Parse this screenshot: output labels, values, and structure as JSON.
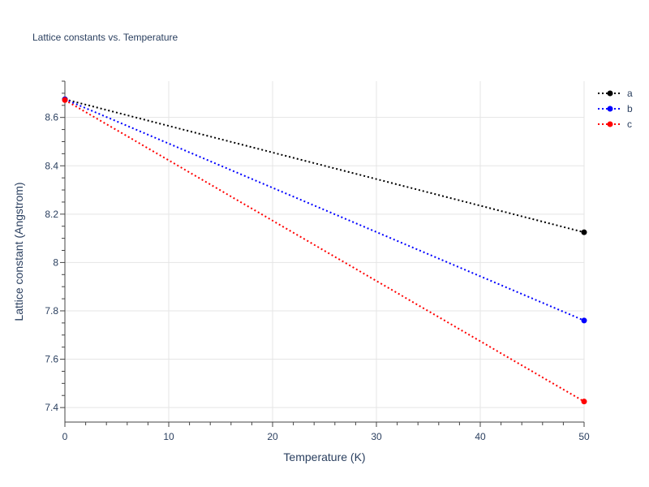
{
  "chart_data": {
    "type": "line",
    "title": "Lattice constants vs. Temperature",
    "xlabel": "Temperature (K)",
    "ylabel": "Lattice constant (Angstrom)",
    "xlim": [
      0,
      50
    ],
    "ylim": [
      7.34,
      8.75
    ],
    "xticks": [
      0,
      10,
      20,
      30,
      40,
      50
    ],
    "xtick_labels": [
      "0",
      "10",
      "20",
      "30",
      "40",
      "50"
    ],
    "yticks": [
      7.4,
      7.6,
      7.8,
      8.0,
      8.2,
      8.4,
      8.6
    ],
    "ytick_labels": [
      "7.4",
      "7.6",
      "7.8",
      "8",
      "8.2",
      "8.4",
      "8.6"
    ],
    "grid": true,
    "legend_position": "top-right",
    "series": [
      {
        "name": "a",
        "color": "#000000",
        "x": [
          0,
          50
        ],
        "y": [
          8.675,
          8.125
        ]
      },
      {
        "name": "b",
        "color": "#0000ff",
        "x": [
          0,
          50
        ],
        "y": [
          8.675,
          7.76
        ]
      },
      {
        "name": "c",
        "color": "#ff0000",
        "x": [
          0,
          50
        ],
        "y": [
          8.672,
          7.425
        ]
      }
    ]
  }
}
